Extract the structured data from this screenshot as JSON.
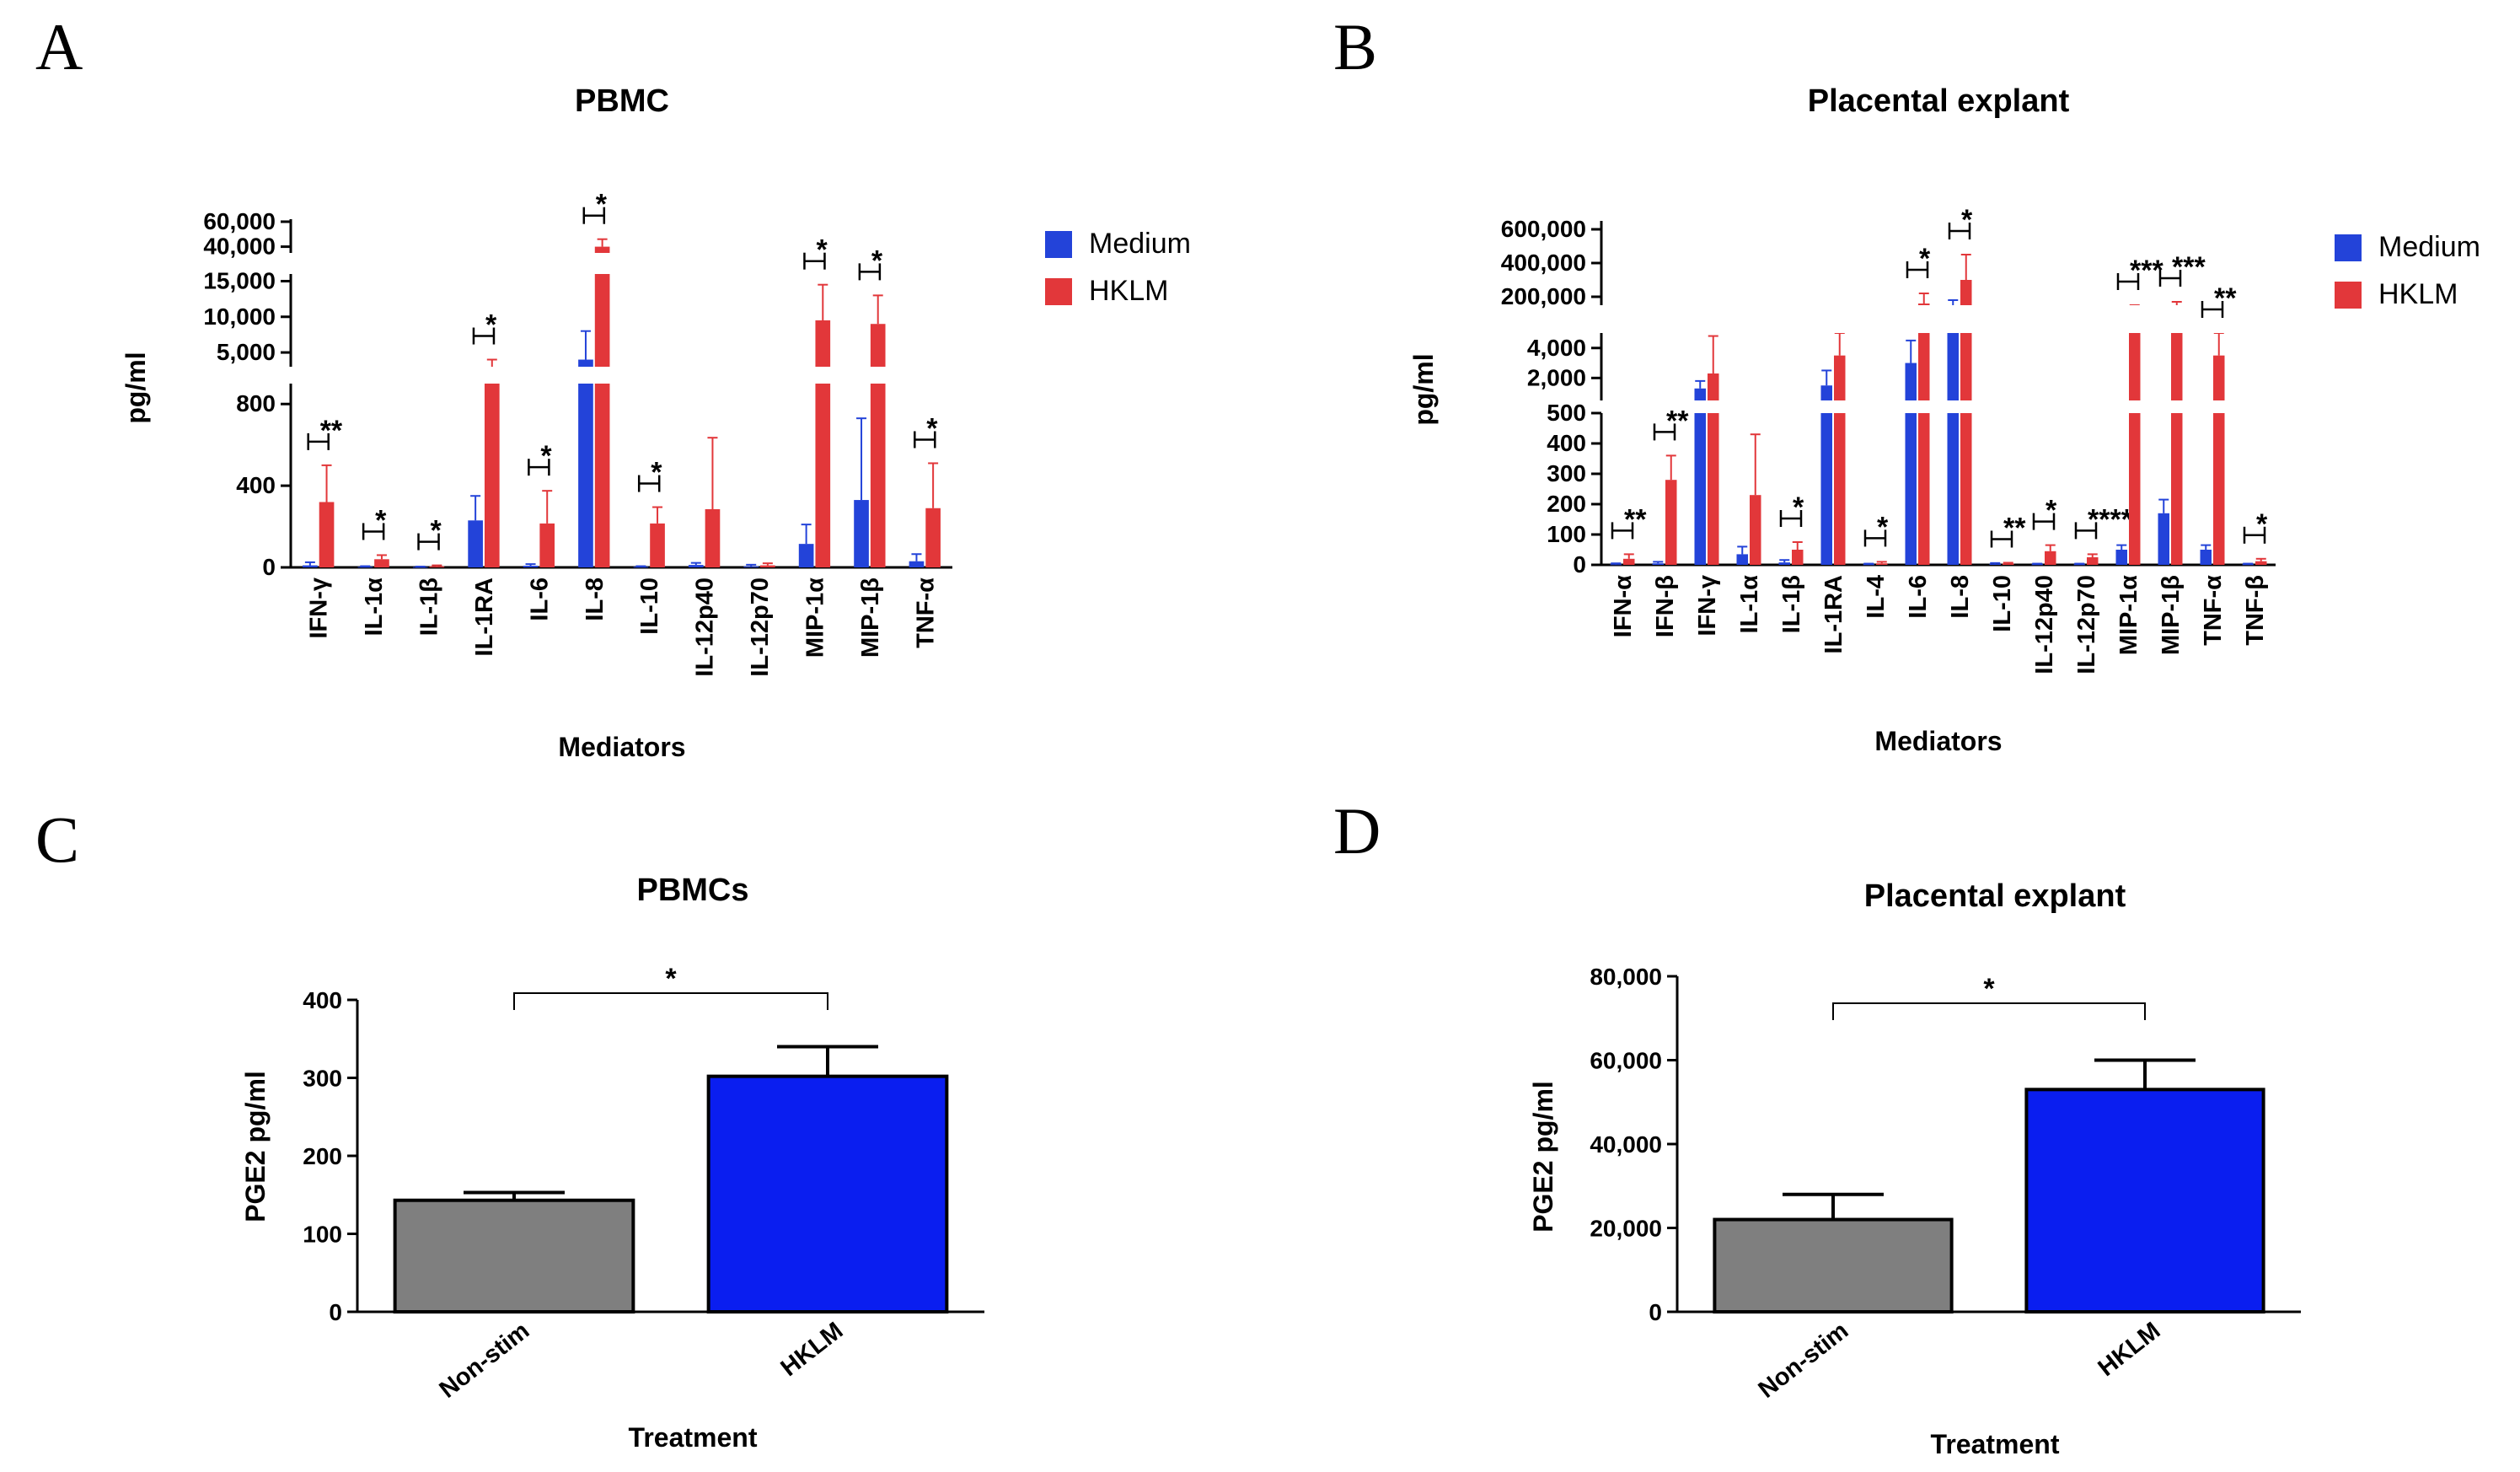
{
  "colors": {
    "medium": "#2343d9",
    "hklm": "#e2373a",
    "nonstim": "#7f7f7f",
    "hklm_c": "#0a1ef0"
  },
  "panels": {
    "A": {
      "letter": "A",
      "title": "PBMC",
      "ylabel": "pg/ml",
      "xlabel": "Mediators"
    },
    "B": {
      "letter": "B",
      "title": "Placental explant",
      "ylabel": "pg/ml",
      "xlabel": "Mediators"
    },
    "C": {
      "letter": "C",
      "title": "PBMCs",
      "ylabel": "PGE2 pg/ml",
      "xlabel": "Treatment"
    },
    "D": {
      "letter": "D",
      "title": "Placental explant",
      "ylabel": "PGE2 pg/ml",
      "xlabel": "Treatment"
    }
  },
  "chart_data": [
    {
      "panel": "A",
      "type": "bar",
      "title": "PBMC",
      "xlabel": "Mediators",
      "ylabel": "pg/ml",
      "y_scale": "segmented (broken axis)",
      "y_segments": [
        {
          "range": [
            0,
            900
          ],
          "ticks": [
            "0",
            "400",
            "800"
          ]
        },
        {
          "range": [
            3000,
            16000
          ],
          "ticks": [
            "5,000",
            "10,000",
            "15,000"
          ]
        },
        {
          "range": [
            35000,
            62000
          ],
          "ticks": [
            "40,000",
            "60,000"
          ]
        }
      ],
      "legend": {
        "position": "top-right",
        "entries": [
          "Medium",
          "HKLM"
        ]
      },
      "categories": [
        "IFN-γ",
        "IL-1α",
        "IL-1β",
        "IL-1RA",
        "IL-6",
        "IL-8",
        "IL-10",
        "IL-12p40",
        "IL-12p70",
        "MIP-1α",
        "MIP-1β",
        "TNF-α"
      ],
      "series": [
        {
          "name": "Medium",
          "values": [
            10,
            3,
            2,
            230,
            8,
            4000,
            3,
            12,
            5,
            115,
            330,
            30
          ],
          "errors": [
            15,
            3,
            2,
            120,
            8,
            4000,
            3,
            10,
            8,
            95,
            400,
            35
          ]
        },
        {
          "name": "HKLM",
          "values": [
            320,
            40,
            5,
            2700,
            215,
            40000,
            215,
            285,
            10,
            9500,
            9000,
            290
          ],
          "errors": [
            180,
            20,
            5,
            1300,
            160,
            6000,
            80,
            350,
            10,
            5000,
            4000,
            220
          ]
        }
      ],
      "significance": [
        "**",
        "*",
        "*",
        "*",
        "*",
        "*",
        "*",
        "",
        "",
        "*",
        "*",
        "*"
      ]
    },
    {
      "panel": "B",
      "type": "bar",
      "title": "Placental explant",
      "xlabel": "Mediators",
      "ylabel": "pg/ml",
      "y_scale": "segmented (broken axis)",
      "y_segments": [
        {
          "range": [
            0,
            500
          ],
          "ticks": [
            "0",
            "100",
            "200",
            "300",
            "400",
            "500"
          ]
        },
        {
          "range": [
            500,
            5000
          ],
          "ticks": [
            "2,000",
            "4,000"
          ]
        },
        {
          "range": [
            150000,
            650000
          ],
          "ticks": [
            "200,000",
            "400,000",
            "600,000"
          ]
        }
      ],
      "legend": {
        "position": "top-right",
        "entries": [
          "Medium",
          "HKLM"
        ]
      },
      "categories": [
        "IFN-α",
        "IFN-β",
        "IFN-γ",
        "IL-1α",
        "IL-1β",
        "IL-1RA",
        "IL-4",
        "IL-6",
        "IL-8",
        "IL-10",
        "IL-12p40",
        "IL-12p70",
        "MIP-1α",
        "MIP-1β",
        "TNF-α",
        "TNF-β"
      ],
      "series": [
        {
          "name": "Medium",
          "values": [
            2,
            5,
            1300,
            35,
            8,
            1500,
            2,
            3000,
            150000,
            3,
            2,
            2,
            50,
            170,
            50,
            2
          ],
          "errors": [
            3,
            5,
            500,
            25,
            8,
            1000,
            2,
            1500,
            30000,
            3,
            2,
            2,
            15,
            45,
            15,
            2
          ]
        },
        {
          "name": "HKLM",
          "values": [
            20,
            280,
            2300,
            230,
            50,
            3500,
            5,
            160000,
            300000,
            4,
            45,
            25,
            5000,
            150000,
            3500,
            12
          ],
          "errors": [
            15,
            80,
            2500,
            200,
            25,
            1500,
            5,
            60000,
            150000,
            3,
            20,
            10,
            3000,
            20000,
            1500,
            8
          ]
        }
      ],
      "significance": [
        "**",
        "**",
        "",
        "",
        "*",
        "",
        "*",
        "*",
        "*",
        "**",
        "*",
        "****",
        "***",
        "***",
        "**",
        "*"
      ]
    },
    {
      "panel": "C",
      "type": "bar",
      "title": "PBMCs",
      "xlabel": "Treatment",
      "ylabel": "PGE2 pg/ml",
      "ylim": [
        0,
        400
      ],
      "yticks": [
        "0",
        "100",
        "200",
        "300",
        "400"
      ],
      "categories": [
        "Non-stim",
        "HKLM"
      ],
      "values": [
        143,
        302
      ],
      "errors": [
        10,
        38
      ],
      "significance": "*"
    },
    {
      "panel": "D",
      "type": "bar",
      "title": "Placental explant",
      "xlabel": "Treatment",
      "ylabel": "PGE2 pg/ml",
      "ylim": [
        0,
        80000
      ],
      "yticks": [
        "0",
        "20,000",
        "40,000",
        "60,000",
        "80,000"
      ],
      "categories": [
        "Non-stim",
        "HKLM"
      ],
      "values": [
        22000,
        53000
      ],
      "errors": [
        6000,
        7000
      ],
      "significance": "*"
    }
  ]
}
